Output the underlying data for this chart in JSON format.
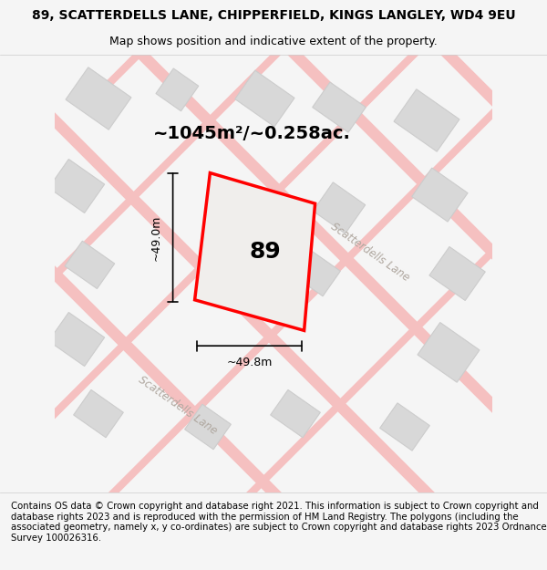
{
  "title_line1": "89, SCATTERDELLS LANE, CHIPPERFIELD, KINGS LANGLEY, WD4 9EU",
  "title_line2": "Map shows position and indicative extent of the property.",
  "footer": "Contains OS data © Crown copyright and database right 2021. This information is subject to Crown copyright and database rights 2023 and is reproduced with the permission of HM Land Registry. The polygons (including the associated geometry, namely x, y co-ordinates) are subject to Crown copyright and database rights 2023 Ordnance Survey 100026316.",
  "area_text": "~1045m²/~0.258ac.",
  "number_label": "89",
  "dim_height": "~49.0m",
  "dim_width": "~49.8m",
  "road_label1": "Scatterdells Lane",
  "road_label2": "Scatterdells Lane",
  "bg_color": "#f5f5f5",
  "map_bg": "#f0eeec",
  "road_color": "#f5c0c0",
  "building_color": "#d8d8d8",
  "building_edge": "#cccccc",
  "plot_color": "#ff0000",
  "plot_fill": "#f0eeec",
  "title_fontsize": 10,
  "footer_fontsize": 7.5,
  "header_bg": "#ffffff",
  "footer_bg": "#ffffff"
}
